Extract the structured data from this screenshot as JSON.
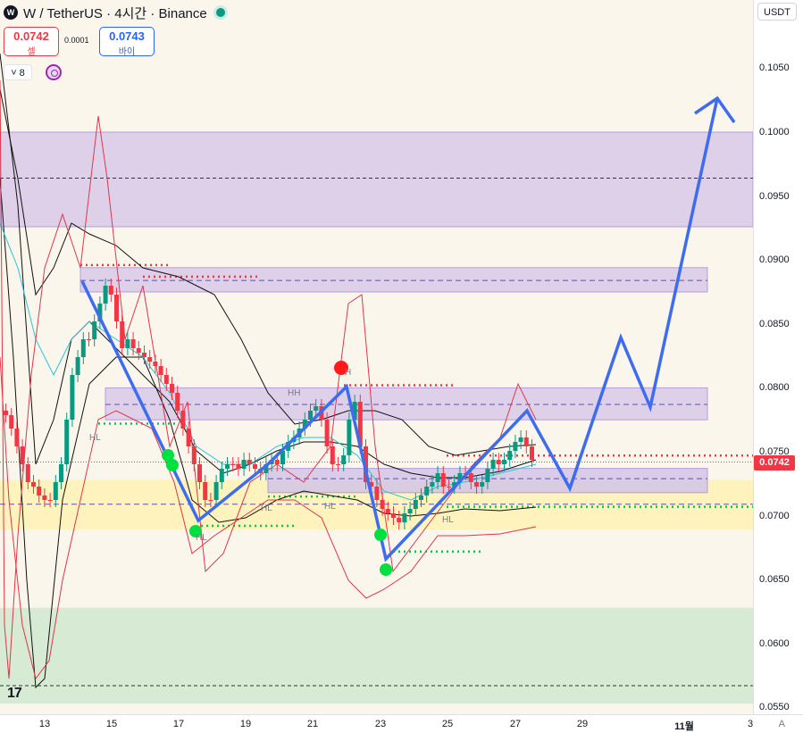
{
  "header": {
    "symbol": "W / TetherUS · 4시간 · Binance",
    "logo_text": "W"
  },
  "quote": {
    "sell_price": "0.0742",
    "sell_label": "셀",
    "buy_price": "0.0743",
    "buy_label": "바이",
    "spread": "0.0001"
  },
  "indicator_toggle": {
    "label": "˅ 8"
  },
  "currency": "USDT",
  "last_price": "0.0742",
  "scale_mode": "A",
  "colors": {
    "up": "#089981",
    "down": "#f23645",
    "projection": "#3d6cf0",
    "purple_zone": "#9575cd",
    "yellow_zone": "#fff3b8",
    "green_zone": "#c8e6c9"
  },
  "price_ticks": [
    "0.1050",
    "0.1000",
    "0.0950",
    "0.0900",
    "0.0850",
    "0.0800",
    "0.0750",
    "0.0700",
    "0.0650",
    "0.0600",
    "0.0550"
  ],
  "time_ticks": [
    "13",
    "15",
    "17",
    "19",
    "21",
    "23",
    "25",
    "27",
    "29",
    "11월",
    "3"
  ],
  "swing_labels": [
    "HL",
    "HH",
    "H",
    "HL",
    "HL",
    "HL",
    "HL"
  ]
}
